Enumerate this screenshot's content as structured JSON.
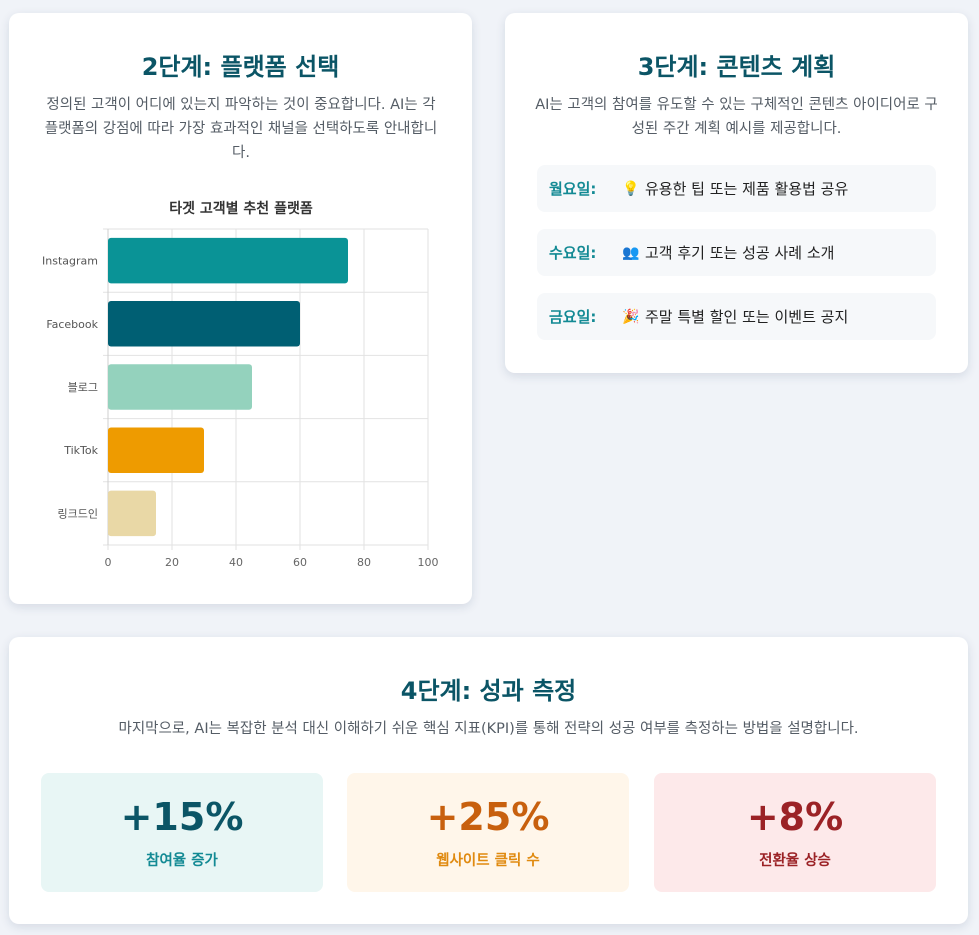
{
  "step2": {
    "title": "2단계: 플랫폼 선택",
    "description": "정의된 고객이 어디에 있는지 파악하는 것이 중요합니다. AI는 각 플랫폼의 강점에 따라 가장 효과적인 채널을 선택하도록 안내합니다."
  },
  "chart_data": {
    "type": "bar",
    "orientation": "horizontal",
    "title": "타겟 고객별 추천 플랫폼",
    "categories": [
      "Instagram",
      "Facebook",
      "블로그",
      "TikTok",
      "링크드인"
    ],
    "values": [
      75,
      60,
      45,
      30,
      15
    ],
    "colors": [
      "#0a9396",
      "#005f73",
      "#94d2bd",
      "#ee9b00",
      "#e9d8a6"
    ],
    "xlim": [
      0,
      100
    ],
    "x_ticks": [
      "0",
      "20",
      "40",
      "60",
      "80",
      "100"
    ],
    "grid": true
  },
  "step3": {
    "title": "3단계: 콘텐츠 계획",
    "description": "AI는 고객의 참여를 유도할 수 있는 구체적인 콘텐츠 아이디어로 구성된 주간 계획 예시를 제공합니다.",
    "schedule": [
      {
        "day": "월요일:",
        "icon": "lightbulb-icon",
        "glyph": "💡",
        "text": "유용한 팁 또는 제품 활용법 공유"
      },
      {
        "day": "수요일:",
        "icon": "people-icon",
        "glyph": "👥",
        "text": "고객 후기 또는 성공 사례 소개"
      },
      {
        "day": "금요일:",
        "icon": "party-icon",
        "glyph": "🎉",
        "text": "주말 특별 할인 또는 이벤트 공지"
      }
    ]
  },
  "step4": {
    "title": "4단계: 성과 측정",
    "description": "마지막으로, AI는 복잡한 분석 대신 이해하기 쉬운 핵심 지표(KPI)를 통해 전략의 성공 여부를 측정하는 방법을 설명합니다.",
    "kpis": [
      {
        "value": "+15%",
        "label": "참여율 증가",
        "bg": "#e8f6f5",
        "value_color": "#0b5566",
        "label_color": "#138a94"
      },
      {
        "value": "+25%",
        "label": "웹사이트 클릭 수",
        "bg": "#fff6ea",
        "value_color": "#c8600e",
        "label_color": "#e08a10"
      },
      {
        "value": "+8%",
        "label": "전환율 상승",
        "bg": "#fde9ea",
        "value_color": "#9b2226",
        "label_color": "#9b2226"
      }
    ]
  }
}
